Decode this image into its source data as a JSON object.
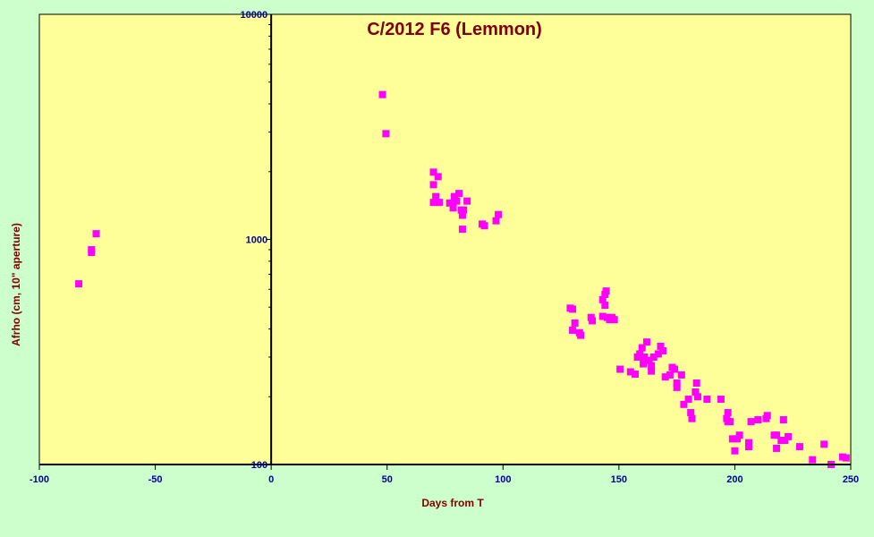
{
  "chart_data": {
    "type": "scatter",
    "title": "C/2012 F6 (Lemmon)",
    "xlabel": "Days from T",
    "ylabel": "Afrho (cm, 10\" aperture)",
    "xlim": [
      -100,
      250
    ],
    "ylim": [
      100,
      10000
    ],
    "yscale": "log",
    "x_ticks": [
      -100,
      -50,
      0,
      50,
      100,
      150,
      200,
      250
    ],
    "y_ticks": [
      100,
      1000,
      10000
    ],
    "x_tick_labels": [
      "-100",
      "-50",
      "0",
      "50",
      "100",
      "150",
      "200",
      "250"
    ],
    "y_tick_labels": [
      "100",
      "1000",
      "10000"
    ],
    "grid": false,
    "plot_background": "#ffff99",
    "page_background": "#ccffcc",
    "marker_color": "#ff00ff",
    "series": [
      {
        "points": [
          [
            -83,
            635
          ],
          [
            -77.5,
            900
          ],
          [
            -77.5,
            875
          ],
          [
            -75.5,
            1060
          ],
          [
            48,
            4400
          ],
          [
            49.5,
            2950
          ],
          [
            70,
            1990
          ],
          [
            70,
            1750
          ],
          [
            71,
            1550
          ],
          [
            72,
            1900
          ],
          [
            70,
            1460
          ],
          [
            72.5,
            1460
          ],
          [
            77,
            1450
          ],
          [
            78.5,
            1380
          ],
          [
            79,
            1550
          ],
          [
            80,
            1480
          ],
          [
            81,
            1600
          ],
          [
            82,
            1350
          ],
          [
            82.5,
            1280
          ],
          [
            83,
            1350
          ],
          [
            84.5,
            1480
          ],
          [
            82.5,
            1110
          ],
          [
            91,
            1170
          ],
          [
            92,
            1150
          ],
          [
            97,
            1210
          ],
          [
            98,
            1290
          ],
          [
            129,
            495
          ],
          [
            130,
            490
          ],
          [
            130,
            395
          ],
          [
            131,
            425
          ],
          [
            133,
            385
          ],
          [
            133.5,
            375
          ],
          [
            138,
            450
          ],
          [
            138.5,
            435
          ],
          [
            143,
            540
          ],
          [
            144,
            570
          ],
          [
            144.5,
            590
          ],
          [
            144,
            510
          ],
          [
            143,
            455
          ],
          [
            145,
            450
          ],
          [
            146,
            440
          ],
          [
            147,
            450
          ],
          [
            148,
            440
          ],
          [
            150.5,
            265
          ],
          [
            155,
            258
          ],
          [
            157,
            252
          ],
          [
            158,
            300
          ],
          [
            159,
            310
          ],
          [
            160,
            330
          ],
          [
            160.5,
            280
          ],
          [
            161,
            300
          ],
          [
            162,
            350
          ],
          [
            163,
            290
          ],
          [
            164,
            275
          ],
          [
            164,
            260
          ],
          [
            165,
            300
          ],
          [
            167,
            310
          ],
          [
            168,
            335
          ],
          [
            169,
            320
          ],
          [
            170,
            245
          ],
          [
            172,
            250
          ],
          [
            173,
            270
          ],
          [
            174,
            265
          ],
          [
            175,
            230
          ],
          [
            175,
            220
          ],
          [
            177,
            250
          ],
          [
            178,
            185
          ],
          [
            180,
            195
          ],
          [
            181,
            170
          ],
          [
            181.5,
            160
          ],
          [
            183,
            210
          ],
          [
            183.5,
            230
          ],
          [
            184,
            200
          ],
          [
            188,
            195
          ],
          [
            194,
            195
          ],
          [
            196.5,
            160
          ],
          [
            197,
            155
          ],
          [
            197,
            170
          ],
          [
            198,
            155
          ],
          [
            199,
            130
          ],
          [
            200,
            115
          ],
          [
            201,
            130
          ],
          [
            202,
            135
          ],
          [
            206,
            125
          ],
          [
            206,
            120
          ],
          [
            207,
            155
          ],
          [
            210,
            158
          ],
          [
            213.5,
            160
          ],
          [
            214,
            165
          ],
          [
            217,
            135
          ],
          [
            218,
            135
          ],
          [
            218,
            118
          ],
          [
            220,
            128
          ],
          [
            221,
            158
          ],
          [
            221.5,
            128
          ],
          [
            223,
            133
          ],
          [
            228,
            120
          ],
          [
            233.5,
            105
          ],
          [
            238.5,
            123
          ],
          [
            241.5,
            100
          ],
          [
            246.5,
            108
          ],
          [
            248,
            107
          ]
        ]
      }
    ]
  }
}
